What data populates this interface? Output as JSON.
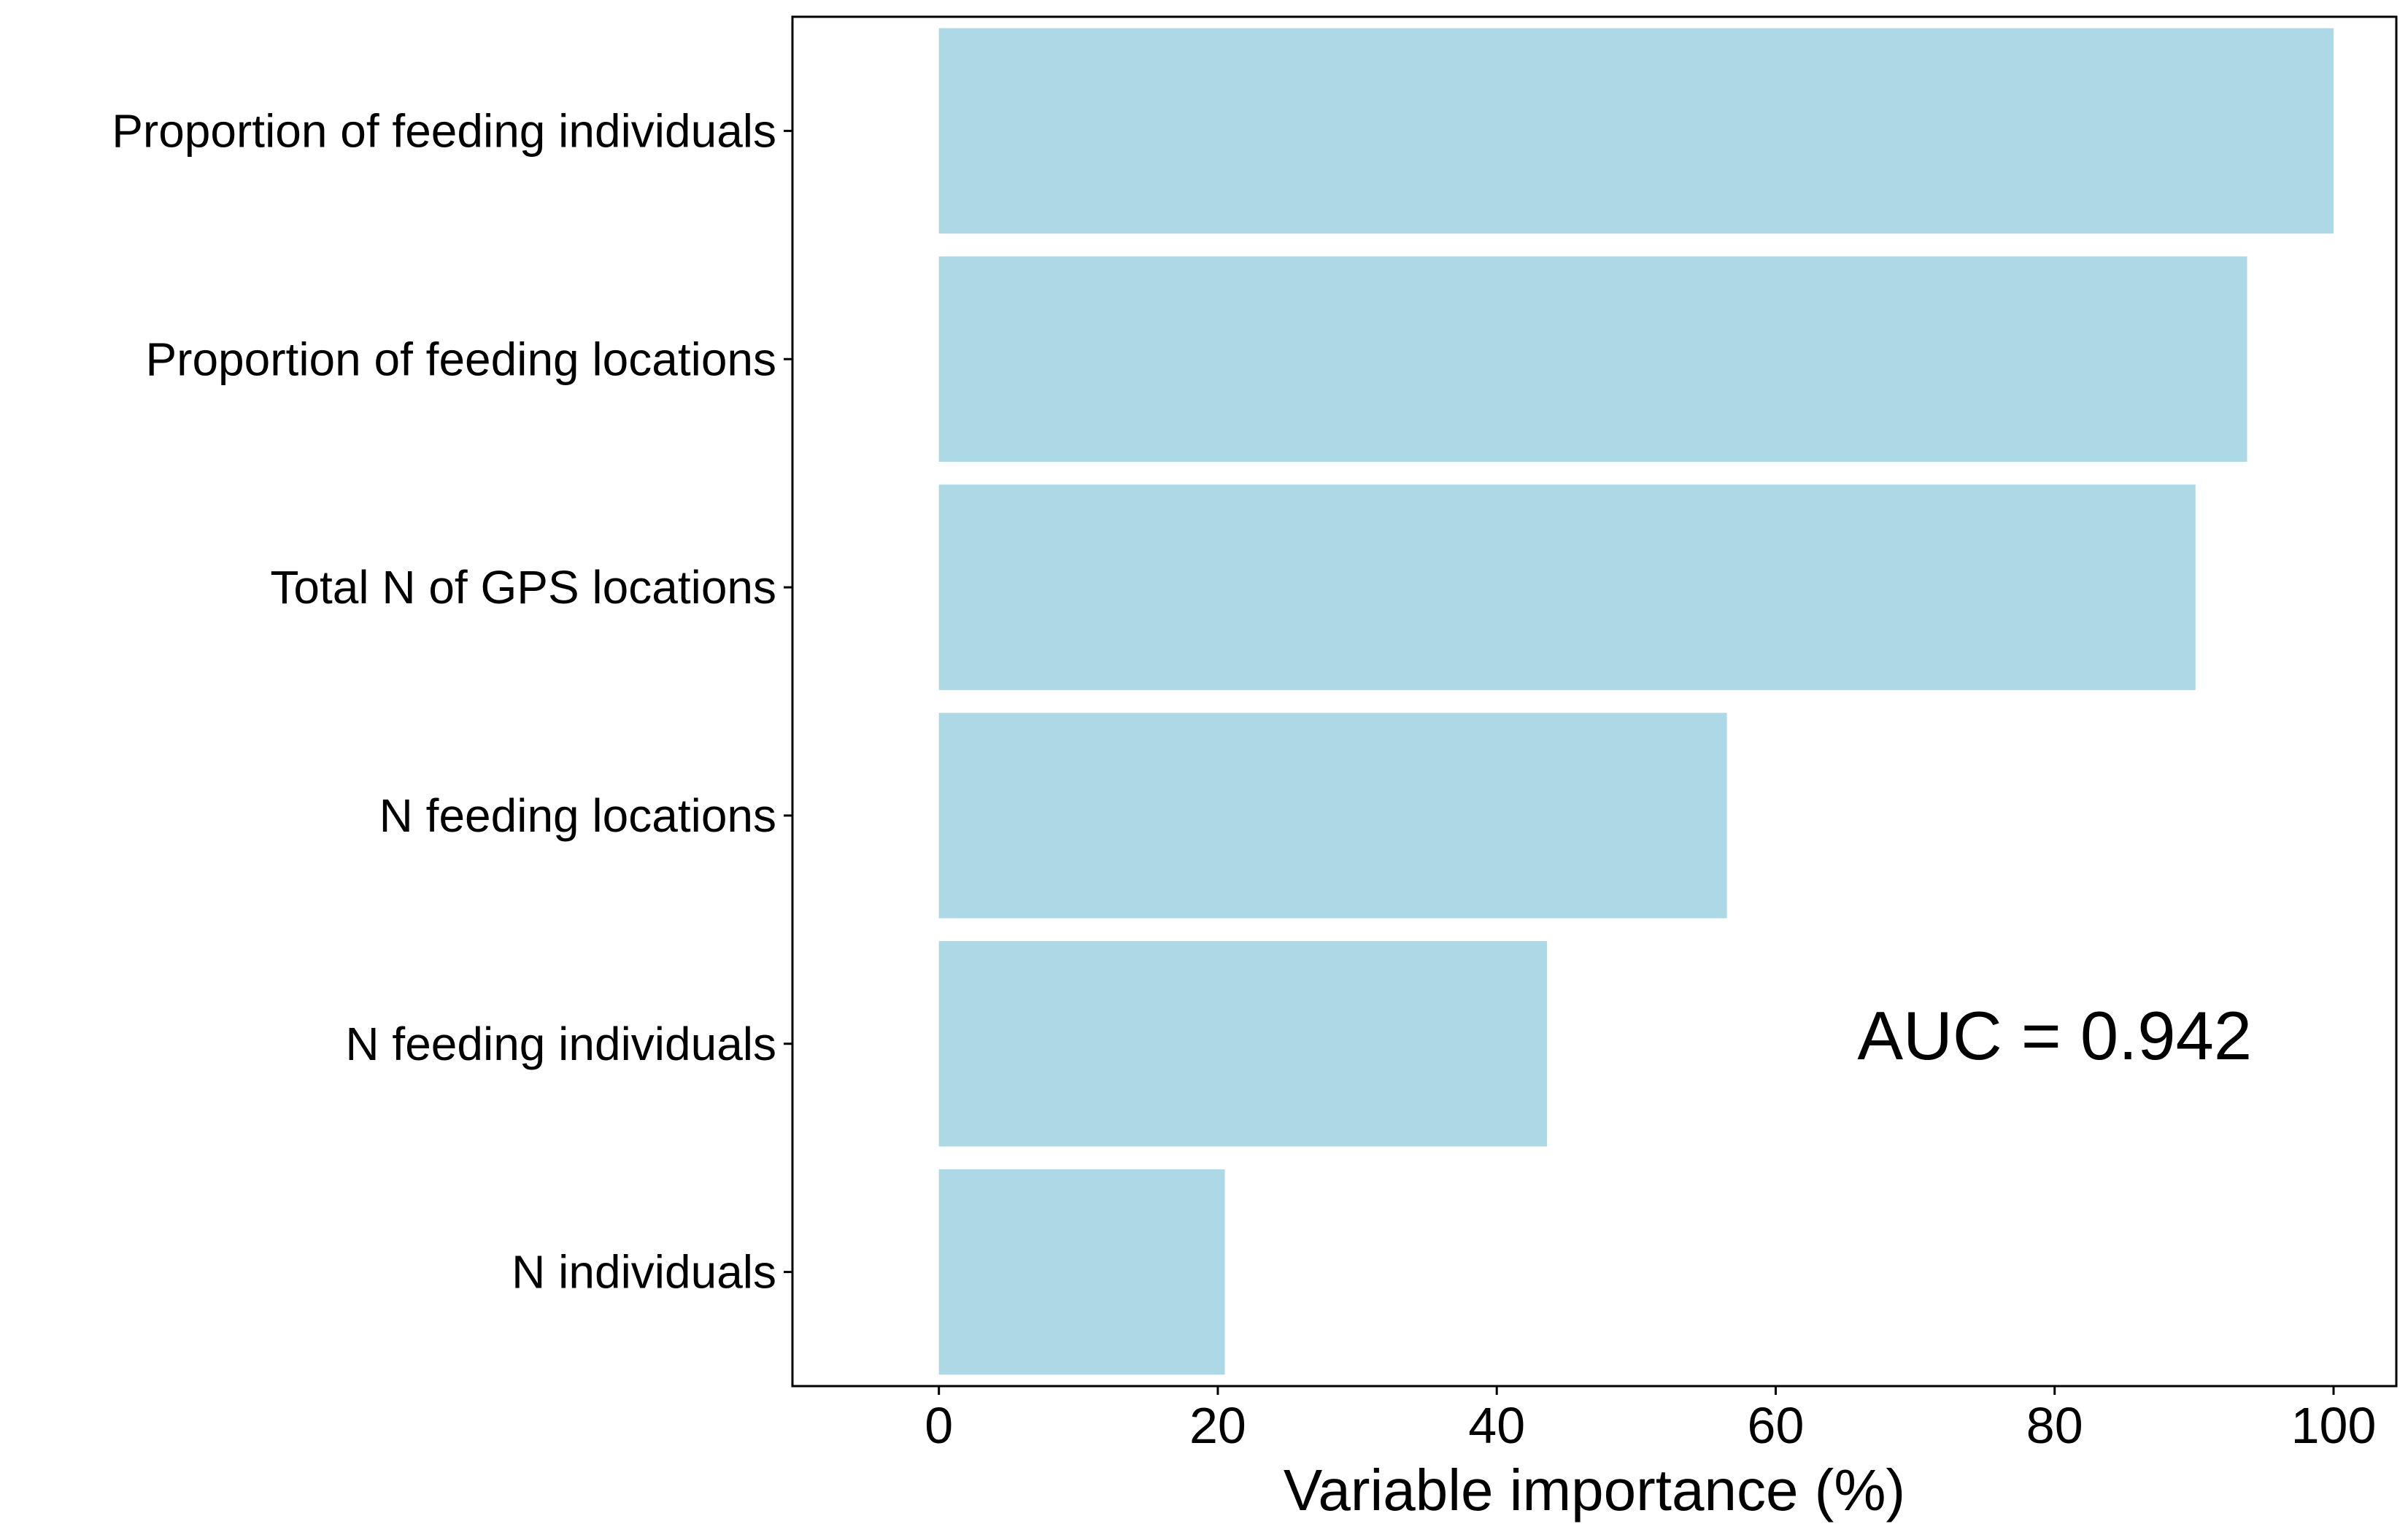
{
  "chart_data": {
    "type": "bar",
    "orientation": "horizontal",
    "categories": [
      "Proportion of feeding individuals",
      "Proportion of feeding locations",
      "Total N of GPS locations",
      "N feeding locations",
      "N feeding individuals",
      "N individuals"
    ],
    "values": [
      100,
      93.8,
      90.1,
      56.5,
      43.6,
      20.5
    ],
    "xlabel": "Variable importance (%)",
    "ylabel": "",
    "xlim": [
      -10.5,
      104.5
    ],
    "xticks": [
      0,
      20,
      40,
      60,
      80,
      100
    ],
    "annotation": "AUC =  0.942",
    "bar_color": "#add8e6",
    "grid": false,
    "legend": "none"
  }
}
